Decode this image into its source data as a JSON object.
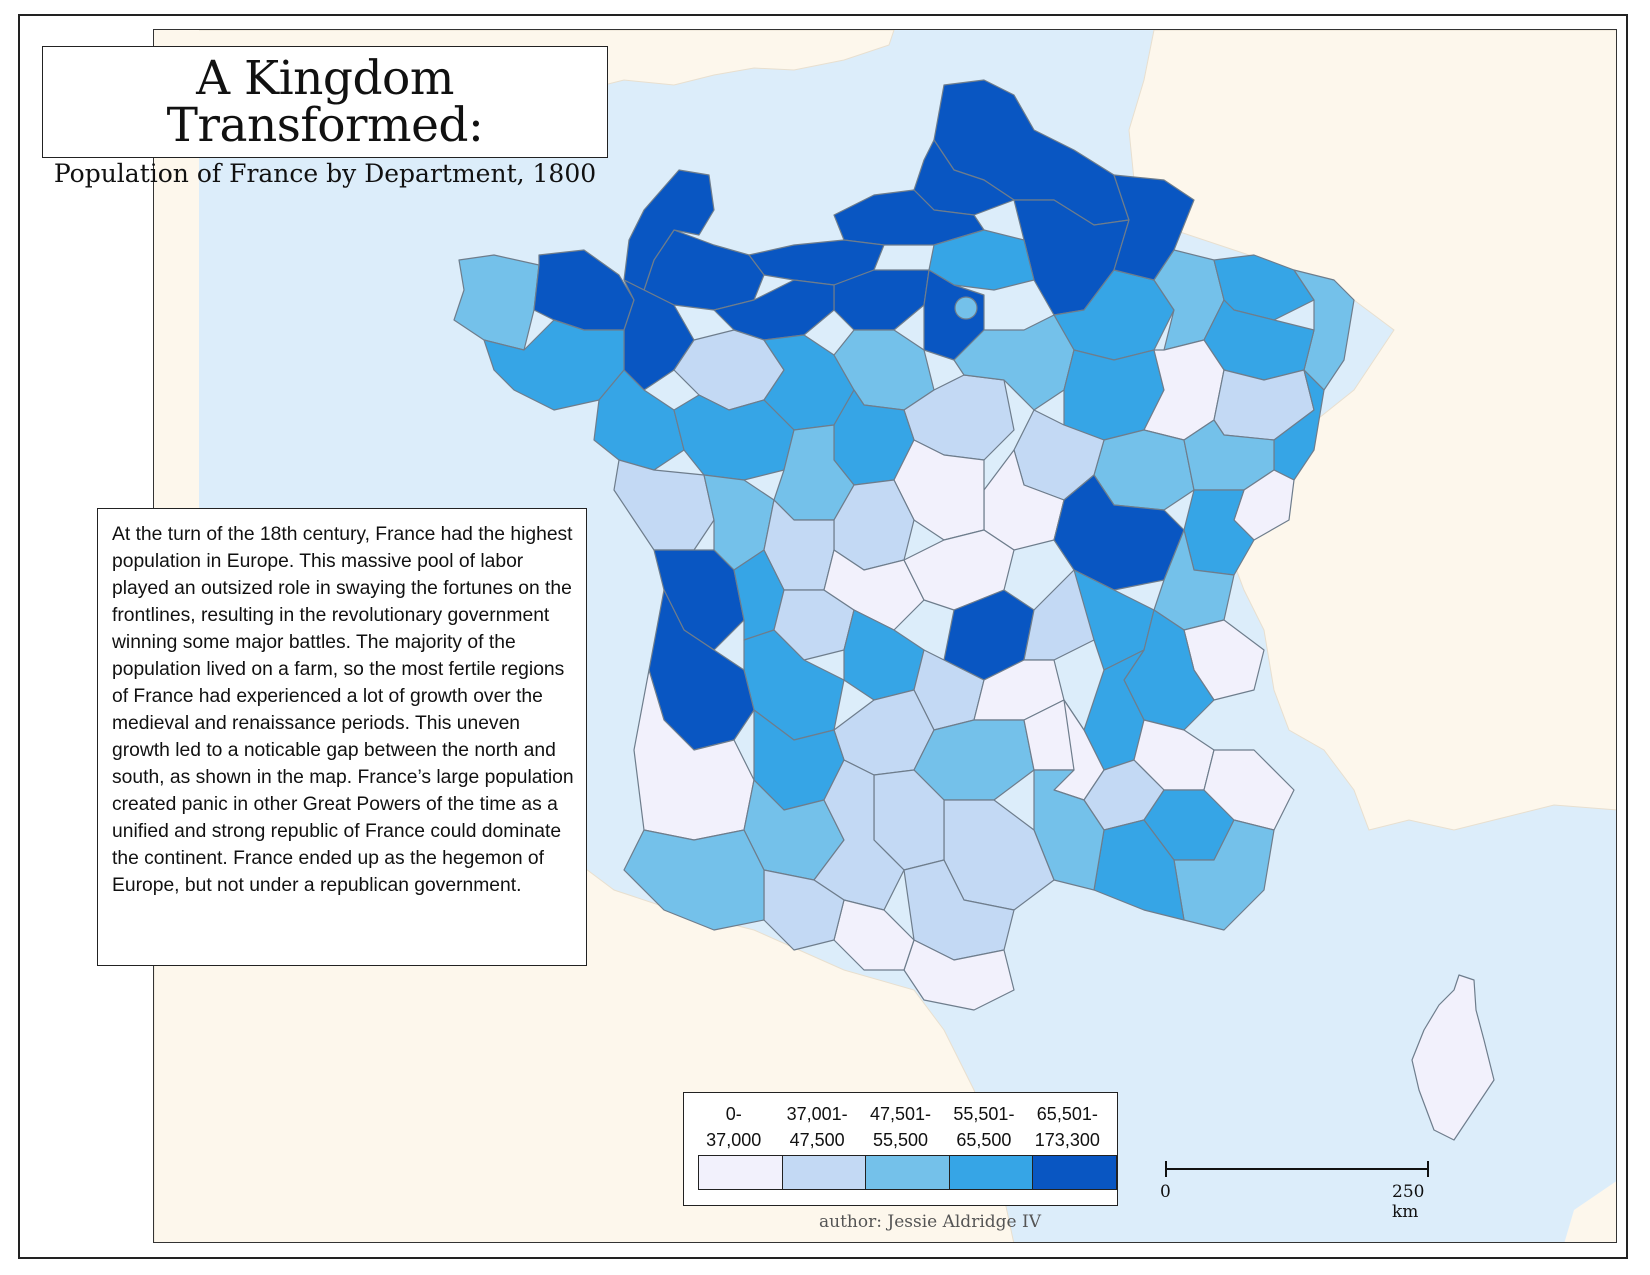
{
  "title": "A Kingdom Transformed:",
  "subtitle": "Population of France by Department, 1800",
  "description": "At the turn of the 18th century, France had the highest population in Europe. This massive pool of labor played an outsized role in swaying the fortunes on the frontlines, resulting in the revolutionary government winning some major battles. The majority of the population lived on a farm, so the most fertile regions of France had experienced a lot of growth over the medieval and renaissance periods. This uneven growth led to a noticable gap between the north and south, as shown in the map. France’s large population created panic in other Great Powers of the time as a unified and strong republic of France could dominate the continent. France ended up as the hegemon of Europe, but not under a republican government.",
  "legend": {
    "classes": [
      {
        "line1": "0-",
        "line2": "37,000",
        "color": "#f2f1fc"
      },
      {
        "line1": "37,001-",
        "line2": "47,500",
        "color": "#c3d9f4"
      },
      {
        "line1": "47,501-",
        "line2": "55,500",
        "color": "#74c1ea"
      },
      {
        "line1": "55,501-",
        "line2": "65,500",
        "color": "#36a5e6"
      },
      {
        "line1": "65,501-",
        "line2": "173,300",
        "color": "#0956c2"
      }
    ]
  },
  "scale_bar": {
    "start_label": "0",
    "end_label": "250 km"
  },
  "author": "author: Jessie Aldridge IV",
  "colors": {
    "sea": "#dcedfa",
    "land": "#fdf7ec",
    "border": "#6e7d8c"
  }
}
